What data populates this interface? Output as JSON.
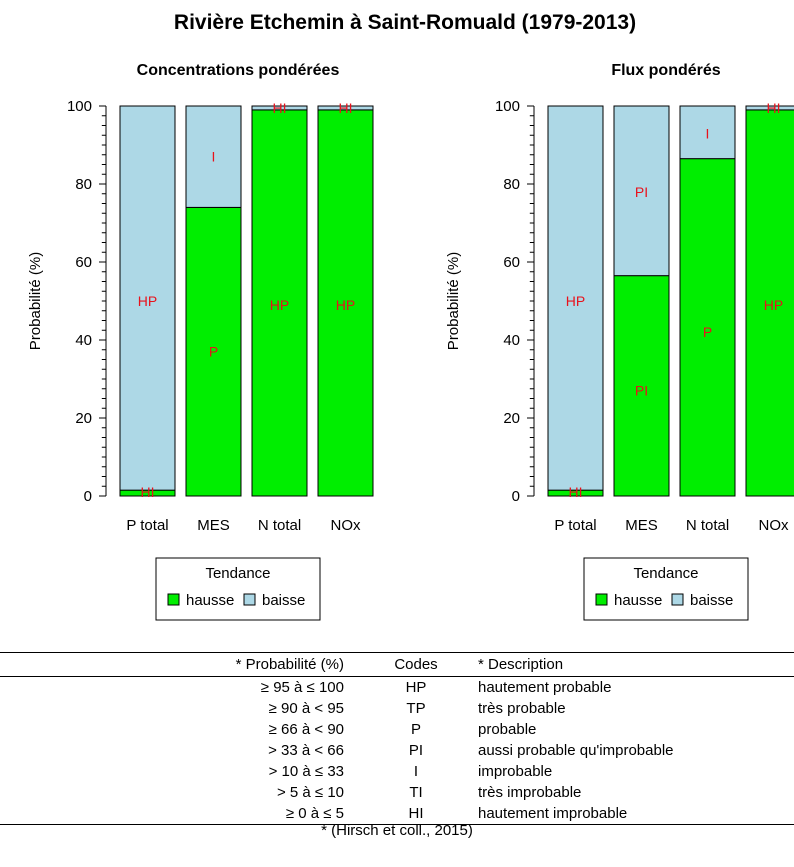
{
  "title": "Rivière Etchemin à Saint-Romuald (1979-2013)",
  "colors": {
    "hausse": "#00ee00",
    "baisse": "#add8e6",
    "code_text": "#e8121c"
  },
  "chart_data": [
    {
      "type": "bar",
      "stacked": true,
      "title": "Concentrations pondérées",
      "xlabel": "",
      "ylabel": "Probabilité (%)",
      "ylim": [
        0,
        100
      ],
      "yticks": [
        0,
        20,
        40,
        60,
        80,
        100
      ],
      "categories": [
        "P total",
        "MES",
        "N total",
        "NOx"
      ],
      "series": [
        {
          "name": "hausse",
          "values": [
            1.5,
            74,
            99,
            99
          ]
        },
        {
          "name": "baisse",
          "values": [
            98.5,
            26,
            1,
            1
          ]
        }
      ],
      "annotations": [
        {
          "category": "P total",
          "label": "HP",
          "y": 50
        },
        {
          "category": "P total",
          "label": "HI",
          "y": 1
        },
        {
          "category": "MES",
          "label": "P",
          "y": 37
        },
        {
          "category": "MES",
          "label": "I",
          "y": 87
        },
        {
          "category": "N total",
          "label": "HP",
          "y": 49
        },
        {
          "category": "N total",
          "label": "HI",
          "y": 99.5
        },
        {
          "category": "NOx",
          "label": "HP",
          "y": 49
        },
        {
          "category": "NOx",
          "label": "HI",
          "y": 99.5
        }
      ],
      "legend": {
        "title": "Tendance",
        "entries": [
          "hausse",
          "baisse"
        ],
        "position": "bottom"
      }
    },
    {
      "type": "bar",
      "stacked": true,
      "title": "Flux pondérés",
      "xlabel": "",
      "ylabel": "Probabilité (%)",
      "ylim": [
        0,
        100
      ],
      "yticks": [
        0,
        20,
        40,
        60,
        80,
        100
      ],
      "categories": [
        "P total",
        "MES",
        "N total",
        "NOx"
      ],
      "series": [
        {
          "name": "hausse",
          "values": [
            1.5,
            56.5,
            86.5,
            99
          ]
        },
        {
          "name": "baisse",
          "values": [
            98.5,
            43.5,
            13.5,
            1
          ]
        }
      ],
      "annotations": [
        {
          "category": "P total",
          "label": "HP",
          "y": 50
        },
        {
          "category": "P total",
          "label": "HI",
          "y": 1
        },
        {
          "category": "MES",
          "label": "PI",
          "y": 27
        },
        {
          "category": "MES",
          "label": "PI",
          "y": 78
        },
        {
          "category": "N total",
          "label": "P",
          "y": 42
        },
        {
          "category": "N total",
          "label": "I",
          "y": 93
        },
        {
          "category": "NOx",
          "label": "HP",
          "y": 49
        },
        {
          "category": "NOx",
          "label": "HI",
          "y": 99.5
        }
      ],
      "legend": {
        "title": "Tendance",
        "entries": [
          "hausse",
          "baisse"
        ],
        "position": "bottom"
      }
    }
  ],
  "table": {
    "headers": [
      "* Probabilité (%)",
      "Codes",
      "* Description"
    ],
    "rows": [
      [
        "≥ 95 à ≤ 100",
        "HP",
        "hautement probable"
      ],
      [
        "≥ 90 à < 95",
        "TP",
        "très probable"
      ],
      [
        "≥ 66 à < 90",
        "P",
        "probable"
      ],
      [
        "> 33 à < 66",
        "PI",
        "aussi probable qu'improbable"
      ],
      [
        "> 10 à ≤ 33",
        "I",
        "improbable"
      ],
      [
        "> 5 à ≤ 10",
        "TI",
        "très improbable"
      ],
      [
        "≥ 0 à ≤ 5",
        "HI",
        "hautement improbable"
      ]
    ],
    "source": "* (Hirsch et coll., 2015)"
  }
}
